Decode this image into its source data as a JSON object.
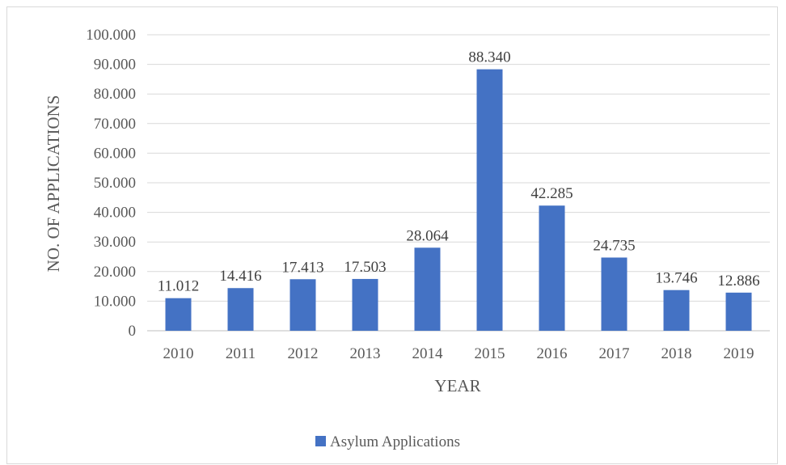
{
  "chart_data": {
    "type": "bar",
    "title": "",
    "xlabel": "YEAR",
    "ylabel": "NO. OF APPLICATIONS",
    "categories": [
      "2010",
      "2011",
      "2012",
      "2013",
      "2014",
      "2015",
      "2016",
      "2017",
      "2018",
      "2019"
    ],
    "series": [
      {
        "name": "Asylum Applications",
        "values": [
          11012,
          14416,
          17413,
          17503,
          28064,
          88340,
          42285,
          24735,
          13746,
          12886
        ],
        "labels": [
          "11.012",
          "14.416",
          "17.413",
          "17.503",
          "28.064",
          "88.340",
          "42.285",
          "24.735",
          "13.746",
          "12.886"
        ],
        "color": "#4472c4"
      }
    ],
    "ylim": [
      0,
      100000
    ],
    "yticks": [
      0,
      10000,
      20000,
      30000,
      40000,
      50000,
      60000,
      70000,
      80000,
      90000,
      100000
    ],
    "ytick_labels": [
      "0",
      "10.000",
      "20.000",
      "30.000",
      "40.000",
      "50.000",
      "60.000",
      "70.000",
      "80.000",
      "90.000",
      "100.000"
    ],
    "grid": true,
    "legend": "bottom",
    "colors": {
      "bar": "#4472c4",
      "grid": "#d9d9d9",
      "text": "#595959"
    }
  }
}
